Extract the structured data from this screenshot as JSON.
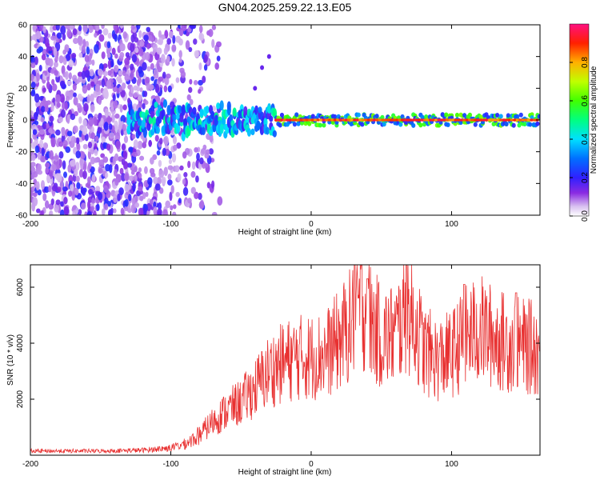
{
  "title": "GN04.2025.259.22.13.E05",
  "colors": {
    "snr_line": "#e83030",
    "background": "#ffffff",
    "axis": "#000000"
  },
  "chart_data": [
    {
      "type": "heatmap",
      "name": "spectrogram",
      "title": "GN04.2025.259.22.13.E05",
      "xlabel": "Height of straight line (km)",
      "ylabel": "Frequency (Hz)",
      "xlim": [
        -200,
        163
      ],
      "ylim": [
        -60,
        60
      ],
      "xticks": [
        -200,
        -100,
        0,
        100
      ],
      "yticks": [
        -60,
        -40,
        -20,
        0,
        20,
        40,
        60
      ],
      "colorbar": {
        "label": "Normalized spectral amplitude",
        "range": [
          0,
          1
        ],
        "ticks": [
          0.0,
          0.2,
          0.4,
          0.6,
          0.8
        ],
        "tick_labels": [
          "0.0",
          "0.2",
          "0.4",
          "0.6",
          "0.8"
        ],
        "colormap": "rainbow"
      },
      "features": {
        "noise_region_x": [
          -200,
          -80
        ],
        "noise_amplitude": 0.12,
        "signal_band_start_x": -130,
        "signal_center_hz": 0,
        "signal_core_start_x": -25,
        "signal_core_amplitude": 0.95,
        "chirp_trace": [
          [
            -40,
            20
          ],
          [
            -35,
            33
          ],
          [
            -30,
            40
          ]
        ]
      }
    },
    {
      "type": "line",
      "name": "snr",
      "xlabel": "Height of straight line (km)",
      "ylabel": "SNR (10 * v/v)",
      "xlim": [
        -200,
        163
      ],
      "ylim": [
        0,
        6800
      ],
      "xticks": [
        -200,
        -100,
        0,
        100
      ],
      "yticks": [
        2000,
        4000,
        6000
      ],
      "series": [
        {
          "name": "SNR",
          "envelope": {
            "x": [
              -200,
              -150,
              -120,
              -100,
              -90,
              -80,
              -70,
              -60,
              -50,
              -40,
              -30,
              -20,
              -10,
              0,
              10,
              20,
              30,
              35,
              40,
              50,
              60,
              68,
              75,
              80,
              90,
              100,
              110,
              120,
              130,
              140,
              150,
              163
            ],
            "y": [
              150,
              150,
              180,
              260,
              400,
              700,
              1200,
              1600,
              1900,
              2400,
              3000,
              3300,
              3500,
              3500,
              3600,
              4100,
              4800,
              5500,
              5000,
              4200,
              4300,
              5200,
              4600,
              3800,
              3400,
              3600,
              4200,
              4500,
              4200,
              4000,
              3900,
              3800
            ]
          },
          "peaks": [
            {
              "x": 31,
              "y": 6800
            },
            {
              "x": 40,
              "y": 6300
            },
            {
              "x": 68,
              "y": 6800
            },
            {
              "x": 109,
              "y": 6100
            },
            {
              "x": 146,
              "y": 5800
            }
          ]
        }
      ]
    }
  ]
}
